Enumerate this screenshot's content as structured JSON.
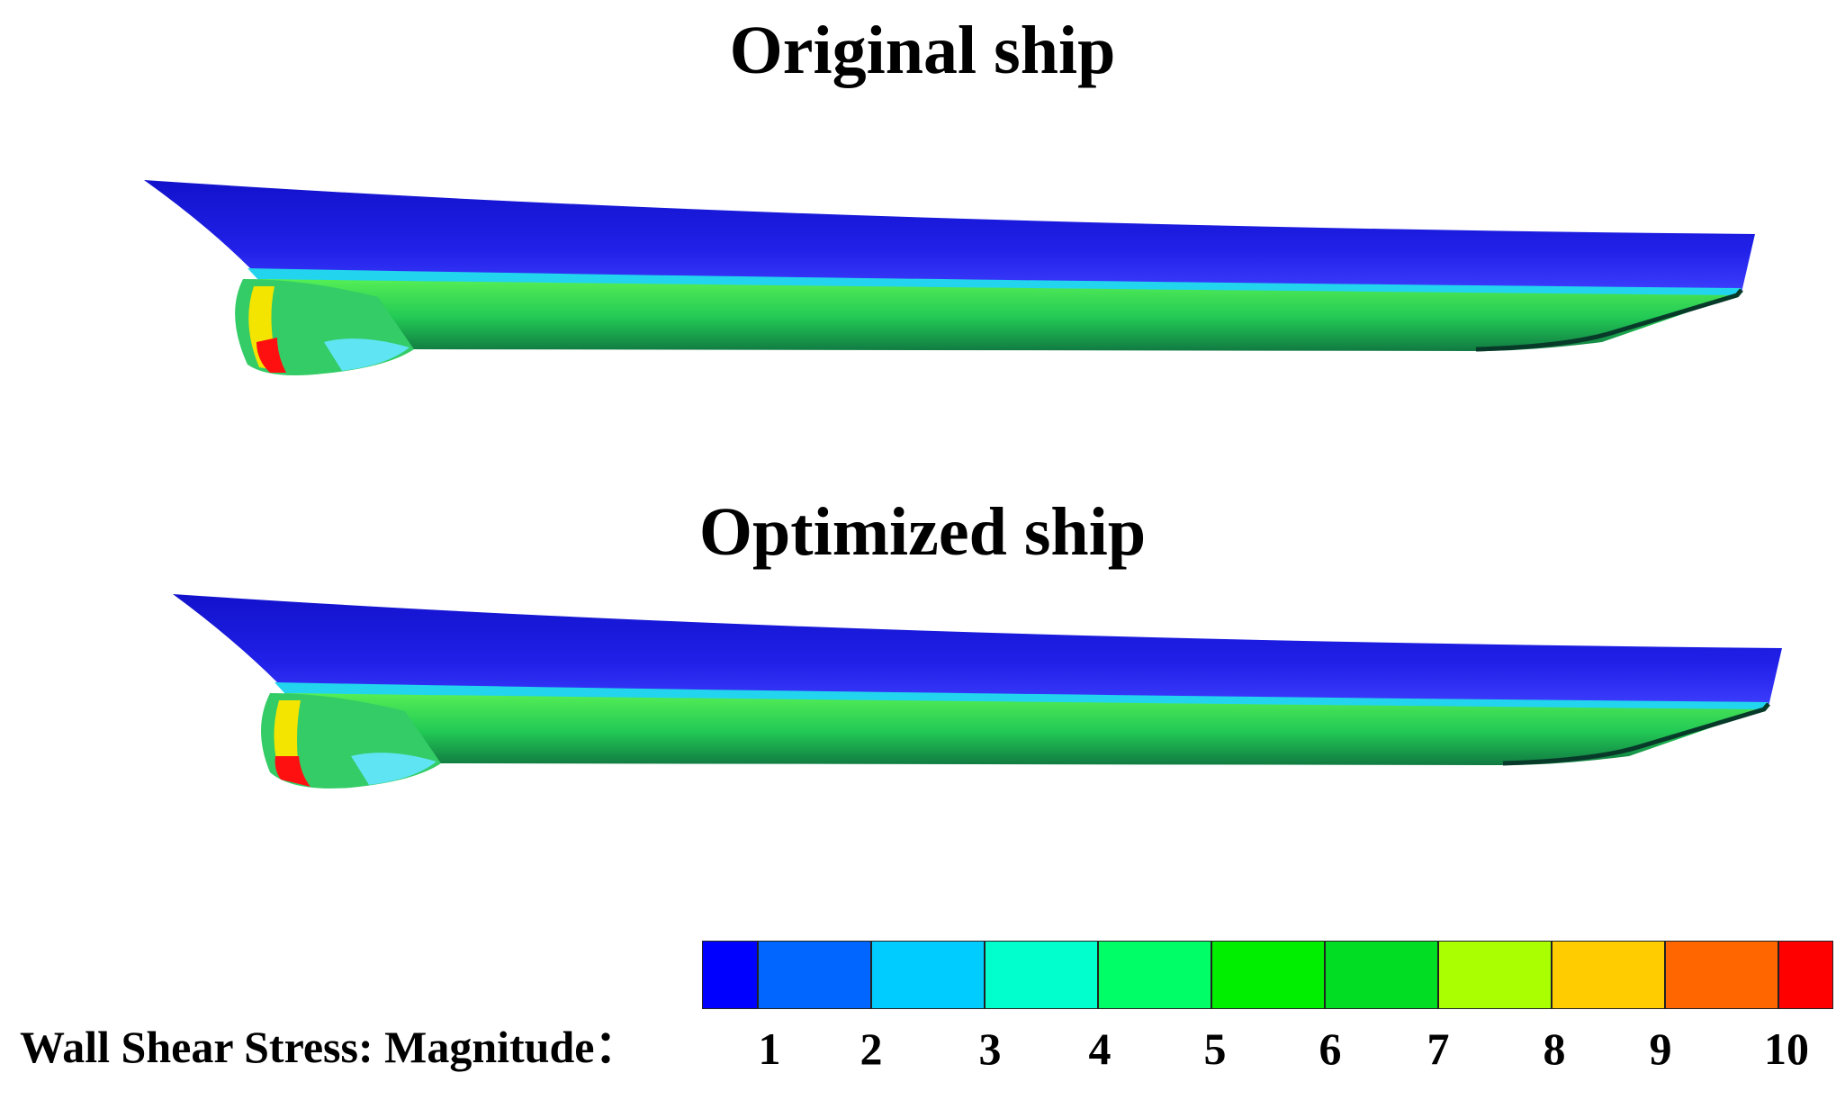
{
  "titles": {
    "original": "Original ship",
    "optimized": "Optimized ship"
  },
  "legend": {
    "label": "Wall Shear Stress: Magnitude：",
    "ticks": [
      "1",
      "2",
      "3",
      "4",
      "5",
      "6",
      "7",
      "8",
      "9",
      "10"
    ],
    "colors": [
      "#0000ff",
      "#0066ff",
      "#00ccff",
      "#00ffcc",
      "#00ff66",
      "#00ee00",
      "#00dd22",
      "#aaff00",
      "#ffcc00",
      "#ff6600",
      "#ff0000"
    ]
  },
  "hull_colors": {
    "deck": "#3a3ae8",
    "hull_blue": "#1818e0",
    "waterline": "#22d4ee",
    "body_green": "#2ed455",
    "keel_dark": "#0a5a3a",
    "bulb_red": "#ff1010",
    "bulb_yellow": "#f3e500",
    "bulb_cyan": "#4ee0f0"
  }
}
